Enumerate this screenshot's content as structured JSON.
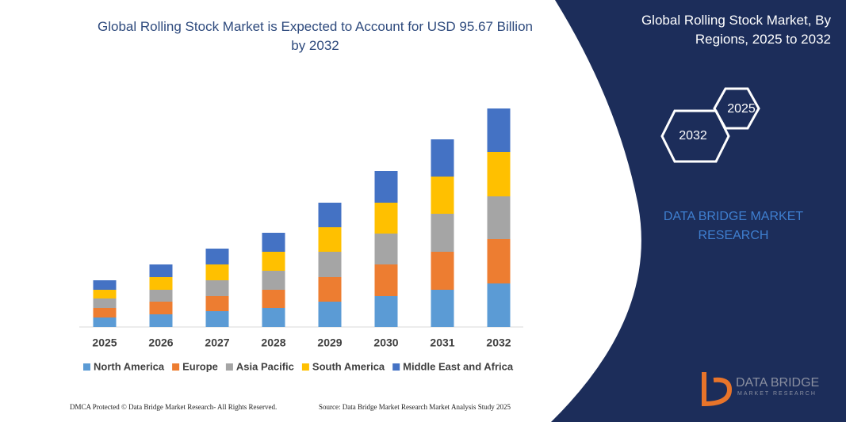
{
  "chart_data": {
    "type": "bar",
    "stacked": true,
    "title": "Global Rolling Stock Market is Expected to Account for USD 95.67 Billion by 2032",
    "categories": [
      "2025",
      "2026",
      "2027",
      "2028",
      "2029",
      "2030",
      "2031",
      "2032"
    ],
    "series": [
      {
        "name": "North America",
        "color": "#5b9bd5",
        "values": [
          12,
          16,
          20,
          24,
          32,
          39,
          47,
          55
        ]
      },
      {
        "name": "Europe",
        "color": "#ed7d31",
        "values": [
          12,
          16,
          19,
          23,
          31,
          40,
          48,
          56
        ]
      },
      {
        "name": "Asia Pacific",
        "color": "#a5a5a5",
        "values": [
          12,
          15,
          20,
          24,
          32,
          39,
          48,
          54
        ]
      },
      {
        "name": "South America",
        "color": "#ffc000",
        "values": [
          11,
          16,
          20,
          24,
          31,
          39,
          47,
          56
        ]
      },
      {
        "name": "Middle East and Africa",
        "color": "#4472c4",
        "values": [
          12,
          16,
          20,
          24,
          31,
          40,
          47,
          55
        ]
      }
    ]
  },
  "panel": {
    "title": "Global Rolling Stock Market, By Regions, 2025 to 2032",
    "hex_labels": [
      "2025",
      "2032"
    ],
    "brand": "DATA BRIDGE MARKET RESEARCH"
  },
  "footer": {
    "left": "DMCA Protected © Data Bridge Market Research-  All Rights Reserved.",
    "right": "Source: Data Bridge Market Research  Market Analysis Study 2025"
  },
  "logo": {
    "name": "DATA BRIDGE",
    "tagline": "MARKET RESEARCH"
  }
}
